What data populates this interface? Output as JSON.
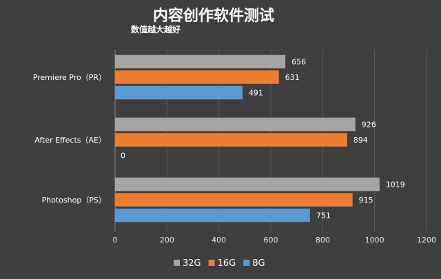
{
  "chart_data": {
    "type": "bar",
    "orientation": "horizontal",
    "title": "内容创作软件测试",
    "subtitle": "数值越大越好",
    "categories": [
      "Premiere Pro（PR）",
      "After Effects（AE）",
      "Photoshop（PS）"
    ],
    "series": [
      {
        "name": "32G",
        "color": "#a5a5a5",
        "values": [
          656,
          926,
          1019
        ]
      },
      {
        "name": "16G",
        "color": "#ed7d31",
        "values": [
          631,
          894,
          915
        ]
      },
      {
        "name": "8G",
        "color": "#5b9bd5",
        "values": [
          491,
          0,
          751
        ]
      }
    ],
    "xlim": [
      0,
      1200
    ],
    "xticks": [
      "0",
      "200",
      "400",
      "600",
      "800",
      "1000",
      "1200"
    ],
    "grid": true,
    "legend_position": "bottom"
  }
}
